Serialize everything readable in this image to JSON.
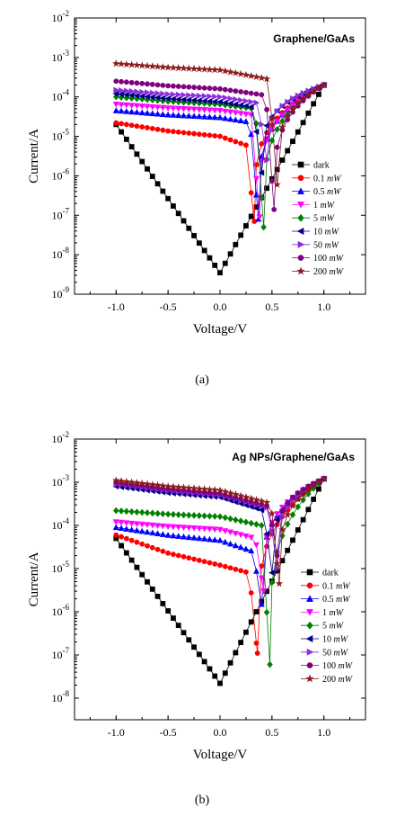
{
  "chart_data": [
    {
      "type": "line",
      "yscale": "log",
      "title": "Graphene/GaAs",
      "caption": "(a)",
      "xlabel": "Voltage/V",
      "ylabel": "Current/A",
      "xlim": [
        -1.4,
        1.4
      ],
      "ylim": [
        1e-09,
        0.01
      ],
      "xticks": [
        "-1.0",
        "-0.5",
        "0.0",
        "0.5",
        "1.0"
      ],
      "yticks": [
        "10-9",
        "10-8",
        "10-7",
        "10-6",
        "10-5",
        "10-4",
        "10-3",
        "10-2"
      ],
      "legend_position": "lower-right",
      "series": [
        {
          "name": "dark",
          "unit": "",
          "color": "#000000",
          "marker": "square",
          "left": 2e-05,
          "min_x": 0.0,
          "min_y": 3.5e-09
        },
        {
          "name": "0.1",
          "unit": "mW",
          "color": "#ff0000",
          "marker": "circle",
          "left": 2.2e-05,
          "mid": 1e-05,
          "near": 6e-06,
          "min_x": 0.33,
          "min_y": 7e-08
        },
        {
          "name": "0.5",
          "unit": "mW",
          "color": "#0000ff",
          "marker": "triangle-up",
          "left": 4.5e-05,
          "mid": 3e-05,
          "near": 2.3e-05,
          "min_x": 0.37,
          "min_y": 8e-08
        },
        {
          "name": "1",
          "unit": "mW",
          "color": "#ff00ff",
          "marker": "triangle-down",
          "left": 6.5e-05,
          "mid": 4.5e-05,
          "near": 3.5e-05,
          "min_x": 0.38,
          "min_y": 9e-08
        },
        {
          "name": "5",
          "unit": "mW",
          "color": "#008000",
          "marker": "diamond",
          "left": 0.0001,
          "mid": 6.5e-05,
          "near": 5e-05,
          "min_x": 0.42,
          "min_y": 5e-08
        },
        {
          "name": "10",
          "unit": "mW",
          "color": "#000080",
          "marker": "triangle-left",
          "left": 0.00012,
          "mid": 7.5e-05,
          "near": 5.5e-05,
          "min_x": 0.4,
          "min_y": 1.2e-06
        },
        {
          "name": "50",
          "unit": "mW",
          "color": "#8a2be2",
          "marker": "triangle-right",
          "left": 0.00015,
          "mid": 0.0001,
          "near": 7e-05,
          "min_x": 0.45,
          "min_y": 2.5e-06
        },
        {
          "name": "100",
          "unit": "mW",
          "color": "#800080",
          "marker": "circle",
          "left": 0.00025,
          "mid": 0.00016,
          "near": 0.00011,
          "min_x": 0.52,
          "min_y": 1.4e-07
        },
        {
          "name": "200",
          "unit": "mW",
          "color": "#8b1a1a",
          "marker": "star",
          "left": 0.0007,
          "mid": 0.00048,
          "near": 0.00028,
          "min_x": 0.55,
          "min_y": 6e-07
        }
      ],
      "right_value": 0.0002
    },
    {
      "type": "line",
      "yscale": "log",
      "title": "Ag NPs/Graphene/GaAs",
      "caption": "(b)",
      "xlabel": "Voltage/V",
      "ylabel": "Current/A",
      "xlim": [
        -1.4,
        1.4
      ],
      "ylim": [
        1e-09,
        0.01
      ],
      "xticks": [
        "-1.0",
        "-0.5",
        "0.0",
        "0.5",
        "1.0"
      ],
      "yticks": [
        "10-8",
        "10-7",
        "10-6",
        "10-5",
        "10-4",
        "10-3",
        "10-2"
      ],
      "legend_position": "lower-right",
      "series": [
        {
          "name": "dark",
          "unit": "",
          "color": "#000000",
          "marker": "square",
          "left": 5e-05,
          "min_x": 0.0,
          "min_y": 2.2e-08
        },
        {
          "name": "0.1",
          "unit": "mW",
          "color": "#ff0000",
          "marker": "circle",
          "left": 6e-05,
          "mid": 1.2e-05,
          "near": 8e-06,
          "min_x": 0.36,
          "min_y": 1.1e-07
        },
        {
          "name": "0.5",
          "unit": "mW",
          "color": "#0000ff",
          "marker": "triangle-up",
          "left": 9e-05,
          "mid": 4.5e-05,
          "near": 2.5e-05,
          "min_x": 0.4,
          "min_y": 1.5e-06
        },
        {
          "name": "1",
          "unit": "mW",
          "color": "#ff00ff",
          "marker": "triangle-down",
          "left": 0.00012,
          "mid": 8e-05,
          "near": 5e-05,
          "min_x": 0.42,
          "min_y": 3e-06
        },
        {
          "name": "5",
          "unit": "mW",
          "color": "#008000",
          "marker": "diamond",
          "left": 0.00022,
          "mid": 0.00016,
          "near": 0.0001,
          "min_x": 0.48,
          "min_y": 6e-08
        },
        {
          "name": "10",
          "unit": "mW",
          "color": "#000080",
          "marker": "triangle-left",
          "left": 0.0008,
          "mid": 0.00045,
          "near": 0.00022,
          "min_x": 0.5,
          "min_y": 8e-06
        },
        {
          "name": "50",
          "unit": "mW",
          "color": "#8a2be2",
          "marker": "triangle-right",
          "left": 0.0009,
          "mid": 0.0005,
          "near": 0.00025,
          "min_x": 0.55,
          "min_y": 1e-05
        },
        {
          "name": "100",
          "unit": "mW",
          "color": "#800080",
          "marker": "circle",
          "left": 0.001,
          "mid": 0.00055,
          "near": 0.00028,
          "min_x": 0.55,
          "min_y": 2e-05
        },
        {
          "name": "200",
          "unit": "mW",
          "color": "#8b1a1a",
          "marker": "star",
          "left": 0.0011,
          "mid": 0.00065,
          "near": 0.00032,
          "min_x": 0.57,
          "min_y": 4.5e-06
        }
      ],
      "right_value": 0.0012
    }
  ]
}
